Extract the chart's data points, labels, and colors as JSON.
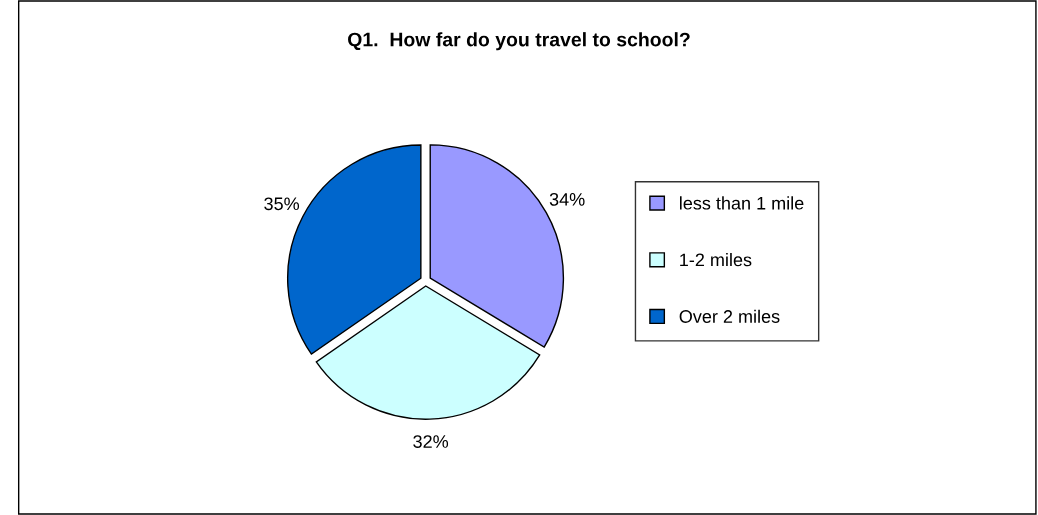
{
  "chart_data": {
    "type": "pie",
    "title": "Q1.  How far do you travel to school?",
    "categories": [
      "less than 1 mile",
      "1-2 miles",
      "Over 2 miles"
    ],
    "values": [
      34,
      32,
      35
    ],
    "value_labels": [
      "34%",
      "32%",
      "35%"
    ],
    "colors": [
      "#9999ff",
      "#ccffff",
      "#0066cc"
    ],
    "legend": "right"
  }
}
